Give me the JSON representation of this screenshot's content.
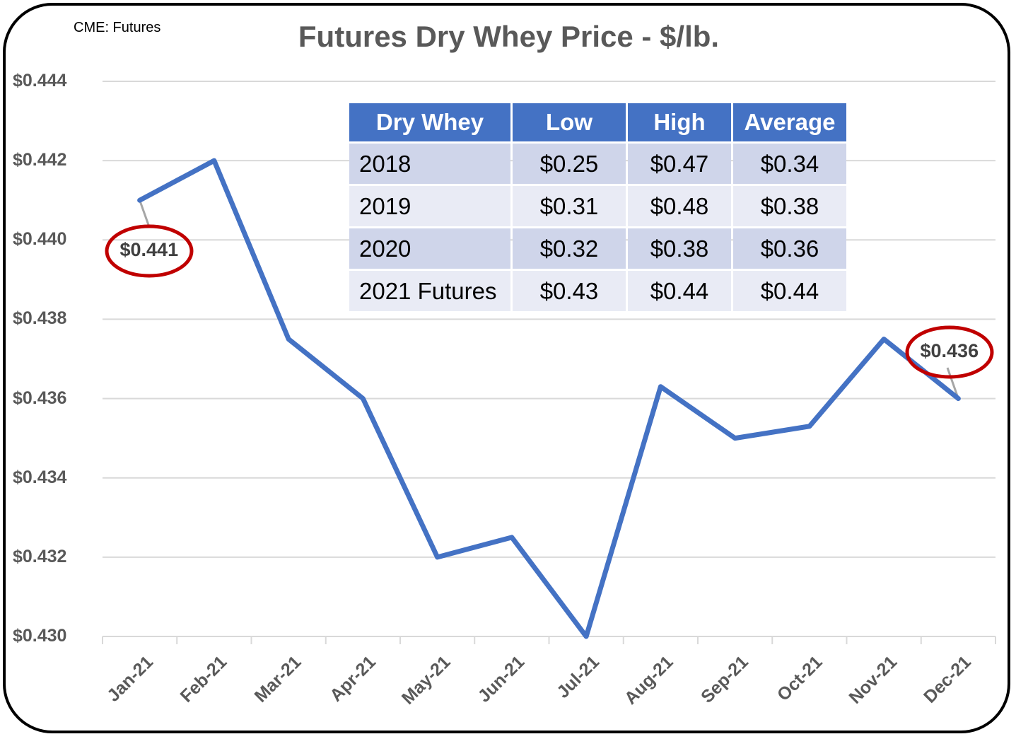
{
  "header": {
    "source": "CME: Futures",
    "title": "Futures Dry Whey Price - $/lb."
  },
  "chart_data": {
    "type": "line",
    "title": "Futures Dry Whey Price - $/lb.",
    "source_note": "CME: Futures",
    "xlabel": "",
    "ylabel": "",
    "ylim": [
      0.43,
      0.444
    ],
    "yticks": [
      "$0.444",
      "$0.442",
      "$0.440",
      "$0.438",
      "$0.436",
      "$0.434",
      "$0.432",
      "$0.430"
    ],
    "grid": true,
    "categories": [
      "Jan-21",
      "Feb-21",
      "Mar-21",
      "Apr-21",
      "May-21",
      "Jun-21",
      "Jul-21",
      "Aug-21",
      "Sep-21",
      "Oct-21",
      "Nov-21",
      "Dec-21"
    ],
    "series": [
      {
        "name": "Dry Whey Futures",
        "color": "#4472c4",
        "values": [
          0.441,
          0.442,
          0.4375,
          0.436,
          0.432,
          0.4325,
          0.43,
          0.4363,
          0.435,
          0.4353,
          0.4375,
          0.436
        ]
      }
    ],
    "annotations": [
      {
        "category": "Jan-21",
        "label": "$0.441",
        "highlight": "red-ellipse"
      },
      {
        "category": "Dec-21",
        "label": "$0.436",
        "highlight": "red-ellipse"
      }
    ],
    "legend": null
  },
  "table": {
    "headers": [
      "Dry Whey",
      "Low",
      "High",
      "Average"
    ],
    "rows": [
      [
        "2018",
        "$0.25",
        "$0.47",
        "$0.34"
      ],
      [
        "2019",
        "$0.31",
        "$0.48",
        "$0.38"
      ],
      [
        "2020",
        "$0.32",
        "$0.38",
        "$0.36"
      ],
      [
        "2021 Futures",
        "$0.43",
        "$0.44",
        "$0.44"
      ]
    ]
  },
  "colors": {
    "line": "#4472c4",
    "header_bg": "#4472c4",
    "row_odd": "#cfd5ea",
    "row_even": "#e9ebf5",
    "highlight": "#c00000",
    "axis_text": "#595959"
  }
}
